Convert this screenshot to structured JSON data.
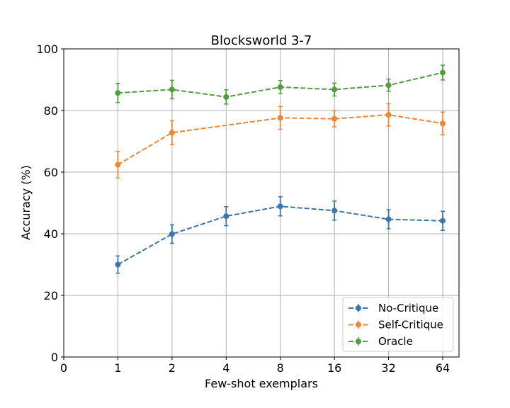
{
  "chart_data": {
    "type": "line",
    "title": "Blocksworld 3-7",
    "xlabel": "Few-shot exemplars",
    "ylabel": "Accuracy (%)",
    "x_tick_labels": [
      "0",
      "1",
      "2",
      "4",
      "8",
      "16",
      "32",
      "64"
    ],
    "x": [
      "1",
      "2",
      "4",
      "8",
      "16",
      "32",
      "64"
    ],
    "y_ticks": [
      0,
      20,
      40,
      60,
      80,
      100
    ],
    "ylim": [
      0,
      100
    ],
    "grid": true,
    "legend_position": "bottom-right",
    "series": [
      {
        "name": "No-Critique",
        "color": "#3a75b0",
        "values": [
          30.0,
          39.9,
          45.7,
          48.9,
          47.5,
          44.7,
          44.2
        ],
        "errors": [
          2.8,
          3.0,
          3.1,
          3.1,
          3.1,
          3.1,
          3.1
        ]
      },
      {
        "name": "Self-Critique",
        "color": "#ef8636",
        "values": [
          62.4,
          72.8,
          null,
          77.6,
          77.3,
          78.6,
          75.8
        ],
        "errors": [
          4.3,
          3.9,
          null,
          3.7,
          2.6,
          3.6,
          3.7
        ]
      },
      {
        "name": "Oracle",
        "color": "#519e3e",
        "values": [
          85.7,
          86.8,
          84.4,
          87.6,
          86.8,
          88.2,
          92.3
        ],
        "errors": [
          3.1,
          3.0,
          2.3,
          2.1,
          2.1,
          2.0,
          2.4
        ]
      }
    ]
  }
}
